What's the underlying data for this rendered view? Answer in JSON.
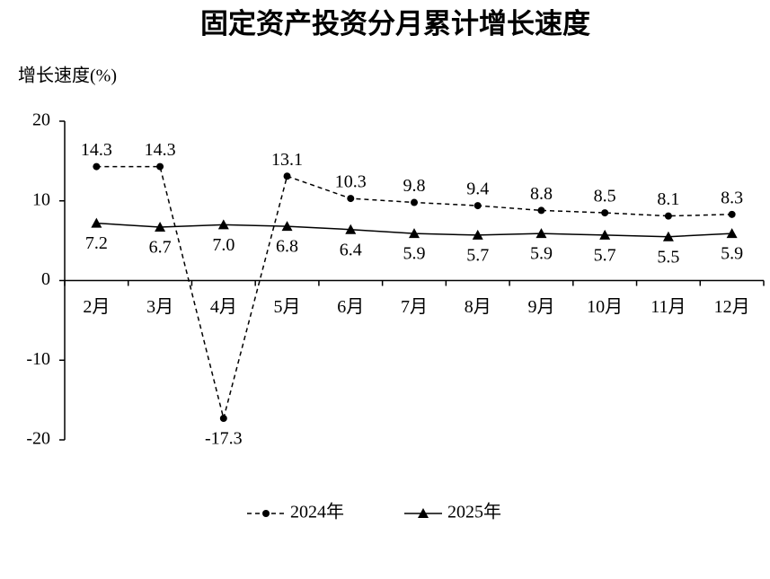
{
  "chart_data": {
    "type": "line",
    "title": "固定资产投资分月累计增长速度",
    "y_label": "增长速度(%)",
    "categories": [
      "2月",
      "3月",
      "4月",
      "5月",
      "6月",
      "7月",
      "8月",
      "9月",
      "10月",
      "11月",
      "12月"
    ],
    "series": [
      {
        "name": "2024年",
        "color": "#000000",
        "dash": "dashed",
        "marker": "circle",
        "values": [
          14.3,
          14.3,
          -17.3,
          13.1,
          10.3,
          9.8,
          9.4,
          8.8,
          8.5,
          8.1,
          8.3
        ]
      },
      {
        "name": "2025年",
        "color": "#000000",
        "dash": "solid",
        "marker": "triangle",
        "values": [
          7.2,
          6.7,
          7.0,
          6.8,
          6.4,
          5.9,
          5.7,
          5.9,
          5.7,
          5.5,
          5.9
        ],
        "value_labels": [
          "7.2",
          "6.7",
          "7.0",
          "6.8",
          "6.4",
          "5.9",
          "5.7",
          "5.9",
          "5.7",
          "5.5",
          "5.9"
        ]
      }
    ],
    "ylim": [
      -20,
      20
    ],
    "yticks": [
      -20,
      -10,
      0,
      10,
      20
    ],
    "grid": false,
    "legend": "bottom"
  }
}
